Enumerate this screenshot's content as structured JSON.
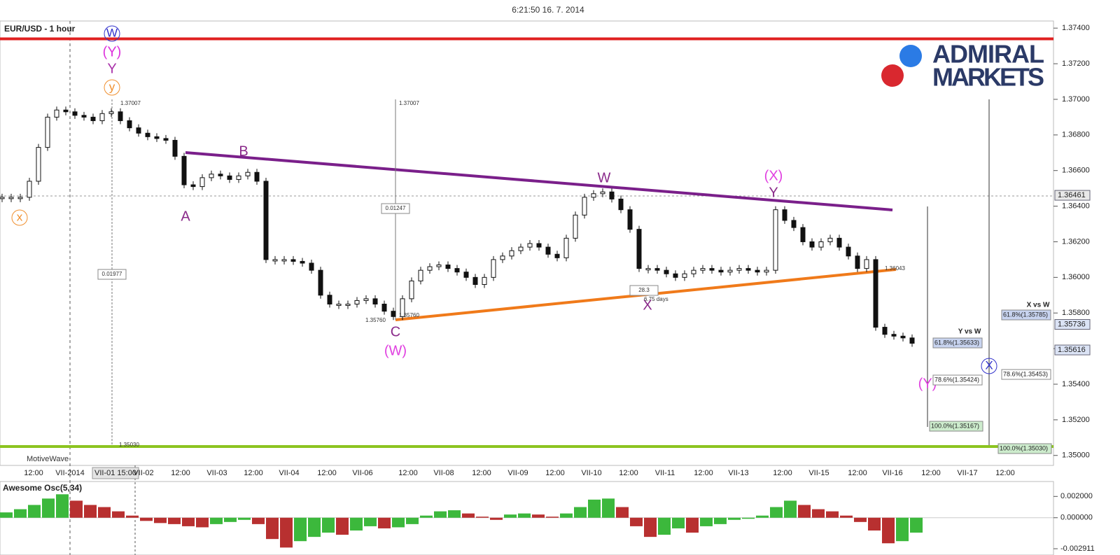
{
  "header": {
    "timestamp": "6:21:50 16. 7. 2014",
    "symbol": "EUR/USD - 1 hour"
  },
  "logo": [
    "ADMIRAL",
    "MARKETS"
  ],
  "price_axis": {
    "ylim": [
      1.3494,
      1.3744
    ],
    "yticks": [
      {
        "value": 1.374,
        "label": "1.37400"
      },
      {
        "value": 1.372,
        "label": "1.37200"
      },
      {
        "value": 1.37,
        "label": "1.37000"
      },
      {
        "value": 1.368,
        "label": "1.36800"
      },
      {
        "value": 1.366,
        "label": "1.36600"
      },
      {
        "value": 1.364,
        "label": "1.36400"
      },
      {
        "value": 1.362,
        "label": "1.36200"
      },
      {
        "value": 1.36,
        "label": "1.36000"
      },
      {
        "value": 1.358,
        "label": "1.35800"
      },
      {
        "value": 1.356,
        "label": "1.35600"
      },
      {
        "value": 1.354,
        "label": "1.35400"
      },
      {
        "value": 1.352,
        "label": "1.35200"
      },
      {
        "value": 1.35,
        "label": "1.35000"
      }
    ],
    "markers": [
      1.36461,
      1.35736,
      1.35616
    ],
    "resistance": 1.3734,
    "support": 1.3505
  },
  "time_axis": [
    "12:00",
    "VII-2014",
    "VII-01 15:00",
    "VII-02",
    "12:00",
    "VII-03",
    "12:00",
    "VII-04",
    "12:00",
    "VII-06",
    "12:00",
    "VII-08",
    "12:00",
    "VII-09",
    "12:00",
    "VII-10",
    "12:00",
    "VII-11",
    "12:00",
    "VII-13",
    "12:00",
    "VII-15",
    "12:00",
    "VII-16",
    "12:00",
    "VII-17",
    "12:00"
  ],
  "candles": {
    "closes": [
      1.3645,
      1.3645,
      1.3645,
      1.3654,
      1.3673,
      1.369,
      1.3694,
      1.3693,
      1.3691,
      1.369,
      1.3688,
      1.3692,
      1.3693,
      1.3688,
      1.3684,
      1.3681,
      1.3679,
      1.3678,
      1.3677,
      1.3668,
      1.3652,
      1.3651,
      1.3656,
      1.3658,
      1.3657,
      1.3655,
      1.3657,
      1.3659,
      1.3654,
      1.361,
      1.361,
      1.361,
      1.3609,
      1.3608,
      1.3604,
      1.359,
      1.3585,
      1.3585,
      1.3585,
      1.3587,
      1.3588,
      1.3585,
      1.3581,
      1.3578,
      1.3588,
      1.3598,
      1.3604,
      1.3606,
      1.3607,
      1.3605,
      1.3603,
      1.36,
      1.3596,
      1.36,
      1.361,
      1.3612,
      1.3615,
      1.3617,
      1.3619,
      1.3617,
      1.3613,
      1.3611,
      1.3622,
      1.3635,
      1.3645,
      1.3647,
      1.3648,
      1.3644,
      1.3638,
      1.3627,
      1.3605,
      1.3605,
      1.3604,
      1.3602,
      1.36,
      1.3602,
      1.3604,
      1.3605,
      1.3604,
      1.3603,
      1.3604,
      1.3605,
      1.3604,
      1.3603,
      1.3604,
      1.3638,
      1.3632,
      1.3628,
      1.362,
      1.3617,
      1.362,
      1.3622,
      1.3617,
      1.3612,
      1.3605,
      1.361,
      1.3572,
      1.3568,
      1.3567,
      1.3566,
      1.3563
    ]
  },
  "waves": [
    "W",
    "(Y)",
    "Y",
    "y",
    "x",
    "A",
    "B",
    "C",
    "(W)",
    "W",
    "X",
    "(X)",
    "Y",
    "(Y)",
    "X"
  ],
  "measurements": [
    "1.37007",
    "0.01977",
    "1.35030",
    "1.37007",
    "0.01247",
    "1.35760",
    "1.35760",
    "28.3",
    "6.75 days",
    "1.36043"
  ],
  "fib": [
    "Y vs W",
    "61.8%(1.35633)",
    "78.6%(1.35424)",
    "100.0%(1.35167)",
    "X vs W",
    "61.8%(1.35785)",
    "78.6%(1.35453)",
    "100.0%(1.35030)"
  ],
  "footer": "MotiveWave",
  "oscillator": {
    "title": "Awesome Osc(5,34)",
    "ylim": [
      -0.0035,
      0.0034
    ],
    "yticks": [
      {
        "value": 0.002,
        "label": "0.002000"
      },
      {
        "value": 0,
        "label": "0.000000"
      },
      {
        "value": -0.002911,
        "label": "-0.002911"
      }
    ],
    "values": [
      0.0005,
      0.0008,
      0.0012,
      0.0018,
      0.0022,
      0.0016,
      0.0012,
      0.001,
      0.0006,
      0.0002,
      -0.0003,
      -0.0005,
      -0.0006,
      -0.0008,
      -0.0009,
      -0.0006,
      -0.0004,
      -0.0002,
      -0.0006,
      -0.002,
      -0.0028,
      -0.0022,
      -0.0018,
      -0.0014,
      -0.0016,
      -0.0012,
      -0.0008,
      -0.001,
      -0.0009,
      -0.0006,
      0.0002,
      0.0006,
      0.0007,
      0.0004,
      0.0001,
      -0.0002,
      0.0003,
      0.0004,
      0.0003,
      0.0001,
      0.0004,
      0.001,
      0.0017,
      0.0018,
      0.001,
      -0.0008,
      -0.0018,
      -0.0016,
      -0.001,
      -0.0014,
      -0.0008,
      -0.0006,
      -0.0002,
      -0.0001,
      0.0002,
      0.001,
      0.0016,
      0.0012,
      0.0008,
      0.0006,
      0.0002,
      -0.0004,
      -0.0012,
      -0.0024,
      -0.0022,
      -0.0014
    ]
  }
}
